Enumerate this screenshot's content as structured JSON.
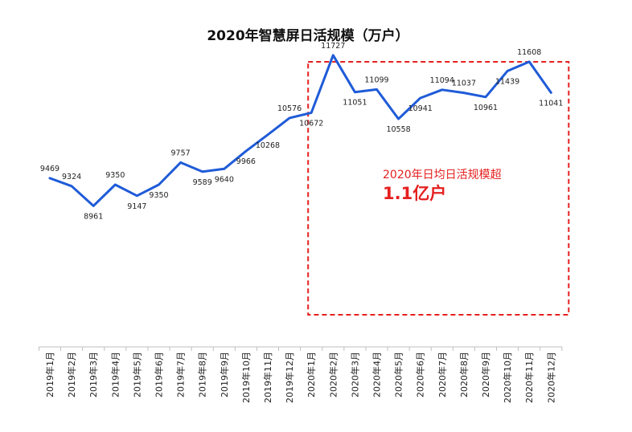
{
  "chart_data": {
    "type": "line",
    "title": "2020年智慧屏日活规模（万户）",
    "categories": [
      "2019年1月",
      "2019年2月",
      "2019年3月",
      "2019年4月",
      "2019年5月",
      "2019年6月",
      "2019年7月",
      "2019年8月",
      "2019年9月",
      "2019年10月",
      "2019年11月",
      "2019年12月",
      "2020年1月",
      "2020年2月",
      "2020年3月",
      "2020年4月",
      "2020年5月",
      "2020年6月",
      "2020年7月",
      "2020年8月",
      "2020年9月",
      "2020年10月",
      "2020年11月",
      "2020年12月"
    ],
    "values": [
      9469,
      9324,
      8961,
      9350,
      9147,
      9350,
      9757,
      9589,
      9640,
      9966,
      10268,
      10576,
      10672,
      11727,
      11051,
      11099,
      10558,
      10941,
      11094,
      11037,
      10961,
      11439,
      11608,
      11041
    ],
    "line_color": "#1f5bd8",
    "ylim": [
      6400,
      12300
    ],
    "grid": false,
    "legend": "none",
    "highlight": {
      "from_category": "2020年1月",
      "to_category": "2020年12月",
      "border_color": "#e5201f",
      "line1": "2020年日均日活规模超",
      "line2": "1.1亿户"
    }
  }
}
